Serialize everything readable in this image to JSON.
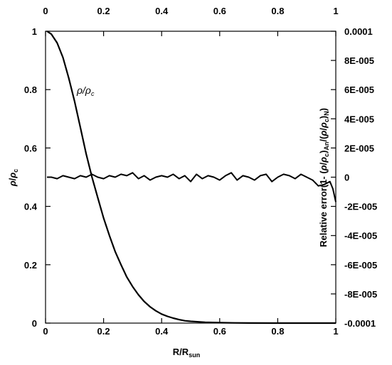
{
  "chart_data": {
    "type": "line",
    "x_ticks": [
      "0",
      "0.2",
      "0.4",
      "0.6",
      "0.8",
      "1"
    ],
    "top_ticks": [
      "0",
      "0.2",
      "0.4",
      "0.6",
      "0.8",
      "1"
    ],
    "y_left_ticks": [
      "0",
      "0.2",
      "0.4",
      "0.6",
      "0.8",
      "1"
    ],
    "y_right_ticks": [
      "-0.0001",
      "-8E-005",
      "-6E-005",
      "-4E-005",
      "-2E-005",
      "0",
      "2E-005",
      "4E-005",
      "6E-005",
      "8E-005",
      "0.0001"
    ],
    "xlabel": "R/Rsun",
    "ylabel_left": "ρ/ρc",
    "ylabel_right": "Relative error(1- (ρ/ρc)An/(ρ/ρc)N)",
    "xlim": [
      0,
      1
    ],
    "ylim_left": [
      0,
      1
    ],
    "ylim_right": [
      -0.0001,
      0.0001
    ],
    "annotation": "ρ/ρc",
    "grid": false,
    "series": [
      {
        "name": "ρ/ρc",
        "axis": "left",
        "x": [
          0.005,
          0.02,
          0.04,
          0.06,
          0.08,
          0.1,
          0.12,
          0.14,
          0.16,
          0.18,
          0.2,
          0.22,
          0.24,
          0.26,
          0.28,
          0.3,
          0.32,
          0.34,
          0.36,
          0.38,
          0.4,
          0.42,
          0.44,
          0.46,
          0.48,
          0.5,
          0.55,
          0.6,
          0.65,
          0.7,
          0.8,
          0.9,
          1.0
        ],
        "y": [
          1.0,
          0.99,
          0.96,
          0.91,
          0.84,
          0.76,
          0.67,
          0.58,
          0.5,
          0.43,
          0.36,
          0.3,
          0.245,
          0.2,
          0.158,
          0.125,
          0.097,
          0.074,
          0.056,
          0.042,
          0.031,
          0.023,
          0.017,
          0.012,
          0.008,
          0.006,
          0.003,
          0.0015,
          0.0007,
          0.0003,
          0.0001,
          0.0,
          0.0
        ]
      },
      {
        "name": "Relative error",
        "axis": "right",
        "x": [
          0.005,
          0.02,
          0.04,
          0.06,
          0.08,
          0.1,
          0.12,
          0.14,
          0.16,
          0.18,
          0.2,
          0.22,
          0.24,
          0.26,
          0.28,
          0.3,
          0.32,
          0.34,
          0.36,
          0.38,
          0.4,
          0.42,
          0.44,
          0.46,
          0.48,
          0.5,
          0.52,
          0.54,
          0.56,
          0.58,
          0.6,
          0.62,
          0.64,
          0.66,
          0.68,
          0.7,
          0.72,
          0.74,
          0.76,
          0.78,
          0.8,
          0.82,
          0.84,
          0.86,
          0.88,
          0.9,
          0.92,
          0.94,
          0.96,
          0.98,
          0.99,
          1.0
        ],
        "y": [
          0.0,
          0.0,
          -1e-06,
          1e-06,
          0.0,
          -1e-06,
          1e-06,
          0.0,
          2e-06,
          0.0,
          -1e-06,
          1e-06,
          0.0,
          2e-06,
          1e-06,
          3e-06,
          -1e-06,
          1e-06,
          -2e-06,
          0.0,
          1e-06,
          0.0,
          2e-06,
          -1e-06,
          1e-06,
          -3e-06,
          2e-06,
          -1e-06,
          1e-06,
          0.0,
          -2e-06,
          1e-06,
          3e-06,
          -2e-06,
          1e-06,
          0.0,
          -2e-06,
          1e-06,
          2e-06,
          -3e-06,
          0.0,
          2e-06,
          1e-06,
          -1e-06,
          2e-06,
          0.0,
          -2e-06,
          -6e-06,
          -5e-06,
          -3e-06,
          -8e-06,
          -1.7e-05
        ]
      }
    ]
  }
}
